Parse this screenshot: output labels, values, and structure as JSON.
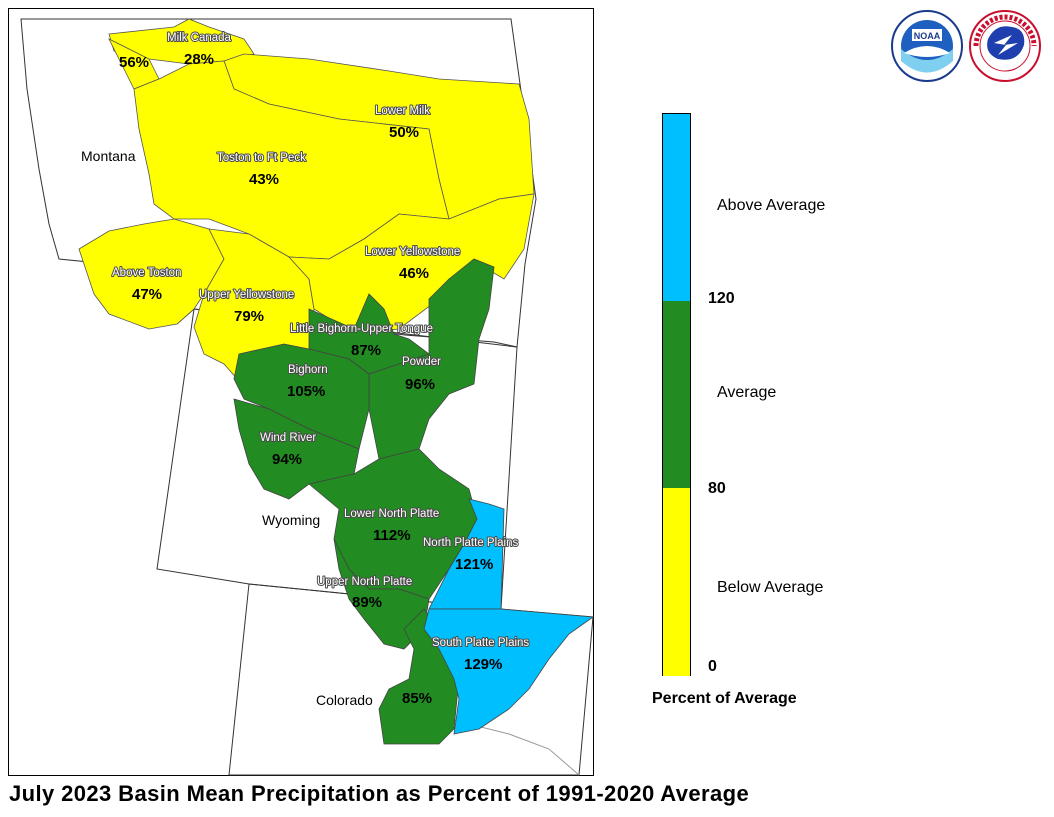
{
  "title": "July 2023 Basin Mean Precipitation as Percent of 1991-2020 Average",
  "states": [
    "Montana",
    "Wyoming",
    "Colorado"
  ],
  "basins": [
    {
      "name": "Milk Canada",
      "pct": "28%",
      "category": "below"
    },
    {
      "name": "",
      "pct": "56%",
      "category": "below"
    },
    {
      "name": "Lower Milk",
      "pct": "50%",
      "category": "below"
    },
    {
      "name": "Toston to Ft Peck",
      "pct": "43%",
      "category": "below"
    },
    {
      "name": "Above Toston",
      "pct": "47%",
      "category": "below"
    },
    {
      "name": "Upper Yellowstone",
      "pct": "79%",
      "category": "below"
    },
    {
      "name": "Lower Yellowstone",
      "pct": "46%",
      "category": "below"
    },
    {
      "name": "Little Bighorn-Upper Tongue",
      "pct": "87%",
      "category": "average"
    },
    {
      "name": "Bighorn",
      "pct": "105%",
      "category": "average"
    },
    {
      "name": "Powder",
      "pct": "96%",
      "category": "average"
    },
    {
      "name": "Wind River",
      "pct": "94%",
      "category": "average"
    },
    {
      "name": "Lower North Platte",
      "pct": "112%",
      "category": "average"
    },
    {
      "name": "North Platte Plains",
      "pct": "121%",
      "category": "above"
    },
    {
      "name": "Upper North Platte",
      "pct": "89%",
      "category": "average"
    },
    {
      "name": "South Platte Plains",
      "pct": "129%",
      "category": "above"
    },
    {
      "name": "",
      "pct": "85%",
      "category": "average"
    }
  ],
  "legend": {
    "title": "Percent of Average",
    "ticks": [
      "120",
      "80",
      "0"
    ],
    "categories": [
      {
        "label": "Above Average",
        "color": "#00bfff"
      },
      {
        "label": "Average",
        "color": "#228b22"
      },
      {
        "label": "Below Average",
        "color": "#ffff00"
      }
    ]
  },
  "logos": [
    "noaa-logo",
    "national-weather-service-logo"
  ]
}
